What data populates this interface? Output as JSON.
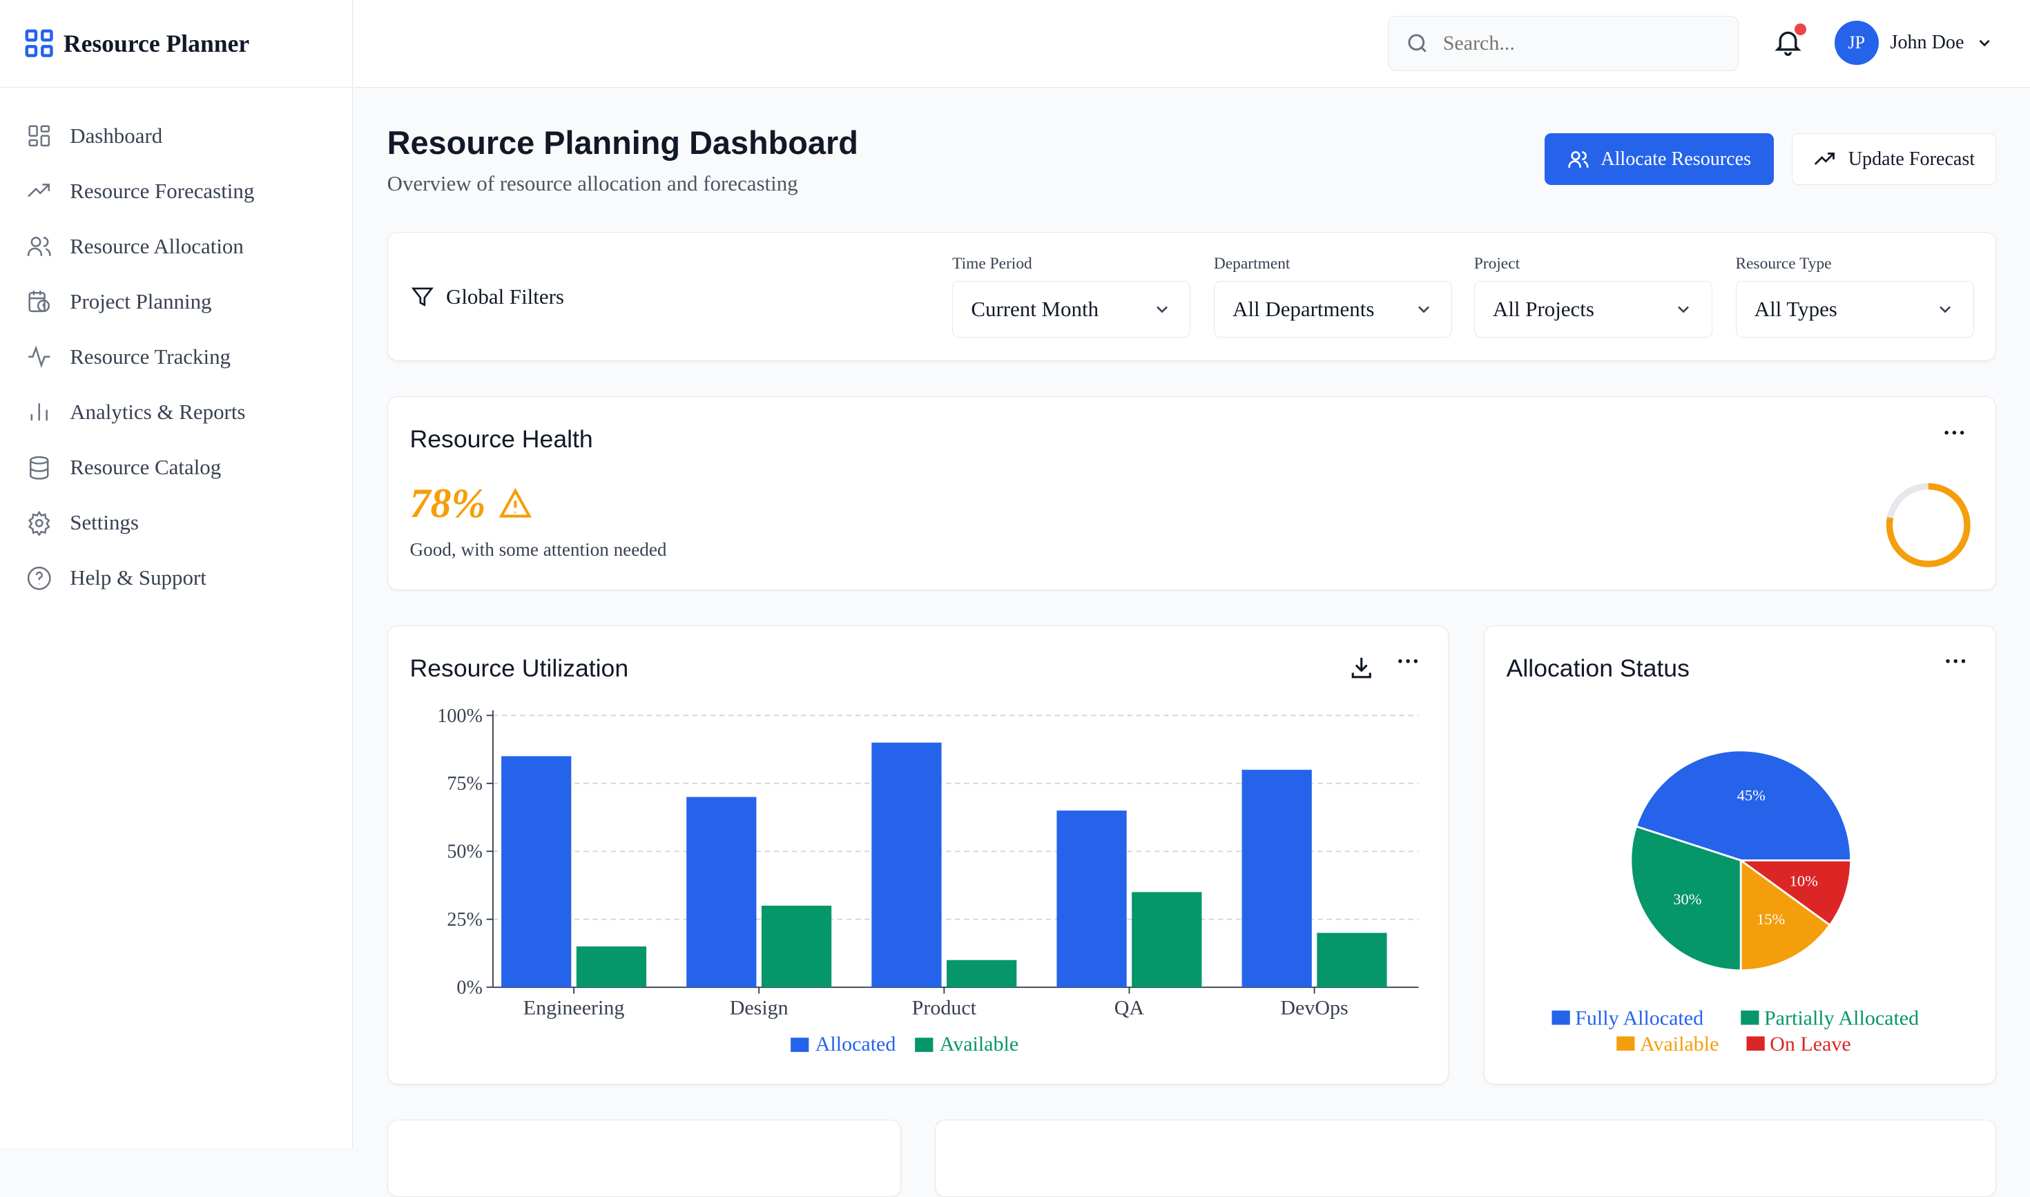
{
  "app": {
    "title": "Resource Planner"
  },
  "sidebar": {
    "items": [
      {
        "label": "Dashboard",
        "icon": "grid-icon"
      },
      {
        "label": "Resource Forecasting",
        "icon": "trending-up-icon"
      },
      {
        "label": "Resource Allocation",
        "icon": "users-icon"
      },
      {
        "label": "Project Planning",
        "icon": "calendar-clock-icon"
      },
      {
        "label": "Resource Tracking",
        "icon": "activity-icon"
      },
      {
        "label": "Analytics & Reports",
        "icon": "bar-chart-icon"
      },
      {
        "label": "Resource Catalog",
        "icon": "database-icon"
      },
      {
        "label": "Settings",
        "icon": "gear-icon"
      },
      {
        "label": "Help & Support",
        "icon": "help-circle-icon"
      }
    ]
  },
  "header": {
    "search_placeholder": "Search...",
    "user": {
      "initials": "JP",
      "name": "John Doe"
    },
    "has_notification": true
  },
  "page": {
    "title": "Resource Planning Dashboard",
    "subtitle": "Overview of resource allocation and forecasting",
    "allocate_label": "Allocate Resources",
    "forecast_label": "Update Forecast"
  },
  "filters": {
    "title": "Global Filters",
    "items": [
      {
        "label": "Time Period",
        "value": "Current Month"
      },
      {
        "label": "Department",
        "value": "All Departments"
      },
      {
        "label": "Project",
        "value": "All Projects"
      },
      {
        "label": "Resource Type",
        "value": "All Types"
      }
    ]
  },
  "health": {
    "title": "Resource Health",
    "value": "78%",
    "percent": 78,
    "status": "Good, with some attention needed"
  },
  "colors": {
    "accent": "#2563eb",
    "green": "#059669",
    "orange": "#f59e0b",
    "red": "#dc2626"
  },
  "chart_data": [
    {
      "type": "bar",
      "title": "Resource Utilization",
      "categories": [
        "Engineering",
        "Design",
        "Product",
        "QA",
        "DevOps"
      ],
      "series": [
        {
          "name": "Allocated",
          "values": [
            85,
            70,
            90,
            65,
            80
          ],
          "color": "#2563eb"
        },
        {
          "name": "Available",
          "values": [
            15,
            30,
            10,
            35,
            20
          ],
          "color": "#059669"
        }
      ],
      "yticks": [
        "0%",
        "25%",
        "50%",
        "75%",
        "100%"
      ],
      "ylim": [
        0,
        100
      ],
      "grid": true,
      "legend": "bottom"
    },
    {
      "type": "pie",
      "title": "Allocation Status",
      "slices": [
        {
          "name": "Fully Allocated",
          "value": 45,
          "label": "45%",
          "color": "#2563eb"
        },
        {
          "name": "Partially Allocated",
          "value": 30,
          "label": "30%",
          "color": "#059669"
        },
        {
          "name": "Available",
          "value": 15,
          "label": "15%",
          "color": "#f59e0b"
        },
        {
          "name": "On Leave",
          "value": 10,
          "label": "10%",
          "color": "#dc2626"
        }
      ],
      "legend": "bottom"
    }
  ]
}
